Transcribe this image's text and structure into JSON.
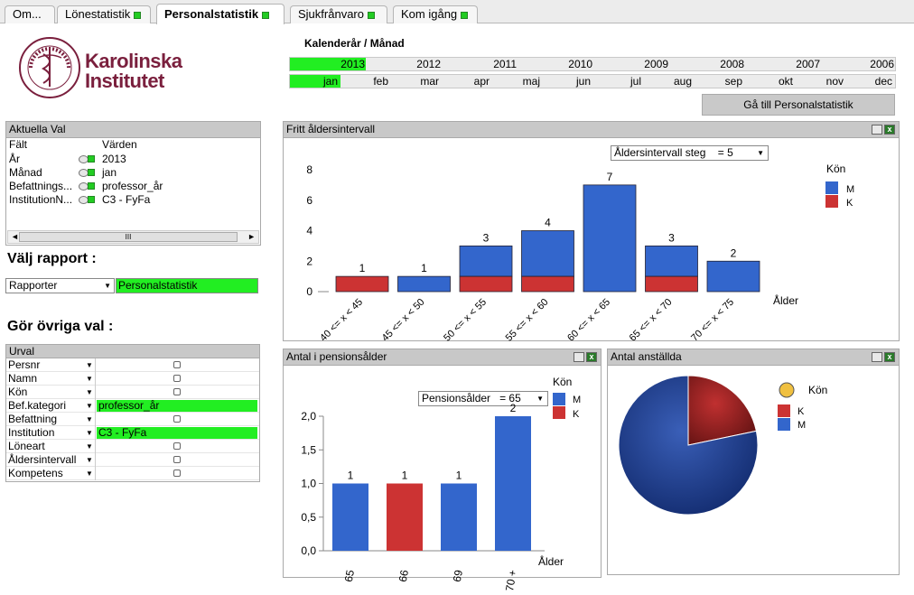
{
  "tabs": [
    {
      "label": "Om..."
    },
    {
      "label": "Lönestatistik"
    },
    {
      "label": "Personalstatistik"
    },
    {
      "label": "Sjukfrånvaro"
    },
    {
      "label": "Kom igång"
    }
  ],
  "logo": {
    "line1": "Karolinska",
    "line2": "Institutet",
    "ring_text": "KAROLINSKA INSTITUTET · ANNO 1810"
  },
  "calendar": {
    "title": "Kalenderår / Månad",
    "years": [
      "2013",
      "2012",
      "2011",
      "2010",
      "2009",
      "2008",
      "2007",
      "2006"
    ],
    "selected_year": "2013",
    "months": [
      "jan",
      "feb",
      "mar",
      "apr",
      "maj",
      "jun",
      "jul",
      "aug",
      "sep",
      "okt",
      "nov",
      "dec"
    ],
    "selected_month": "jan",
    "goto_button": "Gå till Personalstatistik"
  },
  "current_selections": {
    "title": "Aktuella Val",
    "col_field": "Fält",
    "col_values": "Värden",
    "rows": [
      {
        "field": "År",
        "value": "2013"
      },
      {
        "field": "Månad",
        "value": "jan"
      },
      {
        "field": "Befattnings...",
        "value": "professor_år"
      },
      {
        "field": "InstitutionN...",
        "value": "C3 - FyFa"
      }
    ],
    "scroll_mark": "III"
  },
  "report": {
    "heading": "Välj rapport :",
    "dropdown": "Rapporter",
    "selected": "Personalstatistik"
  },
  "other": {
    "heading": "Gör övriga val :",
    "title": "Urval",
    "rows": [
      {
        "label": "Persnr",
        "value": ""
      },
      {
        "label": "Namn",
        "value": ""
      },
      {
        "label": "Kön",
        "value": ""
      },
      {
        "label": "Bef.kategori",
        "value": "professor_år"
      },
      {
        "label": "Befattning",
        "value": ""
      },
      {
        "label": "Institution",
        "value": "C3 - FyFa"
      },
      {
        "label": "Löneart",
        "value": ""
      },
      {
        "label": "Åldersintervall",
        "value": ""
      },
      {
        "label": "Kompetens",
        "value": ""
      }
    ]
  },
  "colors": {
    "M": "#3366cc",
    "K": "#cc3333",
    "selected": "#22ee22"
  },
  "chart_data": [
    {
      "type": "bar",
      "title": "Fritt åldersintervall",
      "dropdown_label": "Åldersintervall steg",
      "dropdown_value": "=  5",
      "categories": [
        "40 <= x < 45",
        "45 <= x < 50",
        "50 <= x < 55",
        "55 <= x < 60",
        "60 <= x < 65",
        "65 <= x < 70",
        "70 <= x < 75"
      ],
      "series": [
        {
          "name": "K",
          "values": [
            1,
            0,
            1,
            1,
            0,
            1,
            0
          ]
        },
        {
          "name": "M",
          "values": [
            0,
            1,
            2,
            3,
            7,
            2,
            2
          ]
        }
      ],
      "totals": [
        1,
        1,
        3,
        4,
        7,
        3,
        2
      ],
      "xlabel": "Ålder",
      "yticks": [
        "0",
        "2",
        "4",
        "6",
        "8"
      ],
      "ylim": [
        0,
        8
      ],
      "legend_title": "Kön",
      "legend": [
        "M",
        "K"
      ],
      "legend_position": "right",
      "stacked": true
    },
    {
      "type": "bar",
      "title": "Antal i pensionsålder",
      "dropdown_label": "Pensionsålder",
      "dropdown_value": "=  65",
      "categories": [
        "65",
        "66",
        "69",
        "70 +"
      ],
      "series": [
        {
          "name": "K",
          "values": [
            0,
            1,
            0,
            0
          ]
        },
        {
          "name": "M",
          "values": [
            1,
            0,
            1,
            2
          ]
        }
      ],
      "totals": [
        1,
        1,
        1,
        2
      ],
      "xlabel": "Ålder",
      "yticks": [
        "0,0",
        "0,5",
        "1,0",
        "1,5",
        "2,0"
      ],
      "ylim": [
        0,
        2
      ],
      "legend_title": "Kön",
      "legend": [
        "M",
        "K"
      ],
      "legend_position": "top-right",
      "stacked": true
    },
    {
      "type": "pie",
      "title": "Antal anställda",
      "slices": [
        {
          "label": "K",
          "value": 5
        },
        {
          "label": "M",
          "value": 18
        }
      ],
      "legend_title": "Kön",
      "legend": [
        "K",
        "M"
      ],
      "legend_position": "right"
    }
  ]
}
